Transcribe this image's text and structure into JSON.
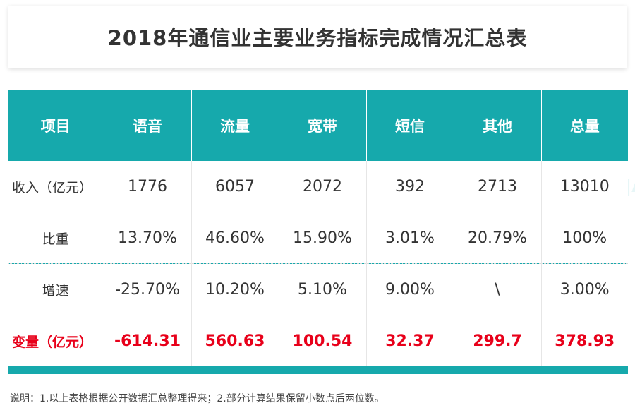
{
  "title": "2018年通信业主要业务指标完成情况汇总表",
  "chart_data": {
    "type": "table",
    "columns": [
      "项目",
      "语音",
      "流量",
      "宽带",
      "短信",
      "其他",
      "总量"
    ],
    "rows": [
      {
        "label": "收入（亿元）",
        "values": [
          "1776",
          "6057",
          "2072",
          "392",
          "2713",
          "13010"
        ]
      },
      {
        "label": "比重",
        "values": [
          "13.70%",
          "46.60%",
          "15.90%",
          "3.01%",
          "20.79%",
          "100%"
        ]
      },
      {
        "label": "增速",
        "values": [
          "-25.70%",
          "10.20%",
          "5.10%",
          "9.00%",
          "\\",
          "3.00%"
        ]
      },
      {
        "label": "变量（亿元）",
        "values": [
          "-614.31",
          "560.63",
          "100.54",
          "32.37",
          "299.7",
          "378.93"
        ],
        "highlight": true
      }
    ]
  },
  "note": "说明：1.以上表格根据公开数据汇总整理得来；2.部分计算结果保留小数点后两位数。",
  "colors": {
    "header_bg": "#16a9ac",
    "highlight_text": "#e8001a",
    "text": "#333333"
  }
}
